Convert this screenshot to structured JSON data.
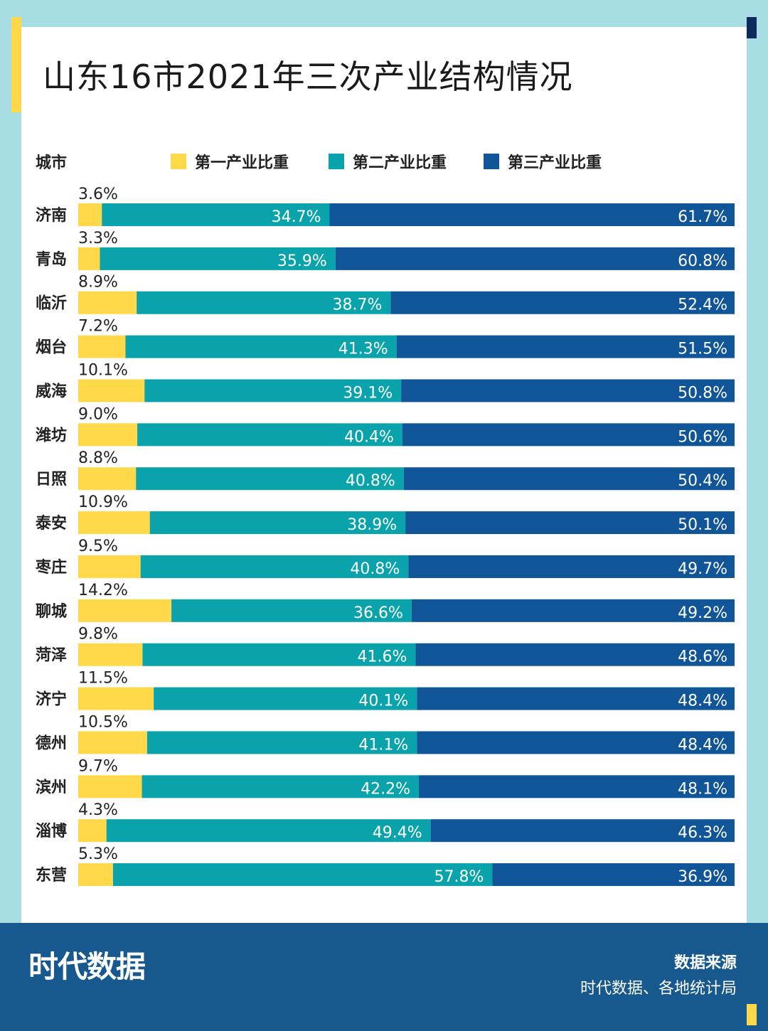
{
  "header": {
    "title": "山东16市2021年三次产业结构情况"
  },
  "footer": {
    "logo_text": "时代数据",
    "source_title": "数据来源",
    "source_text": "时代数据、各地统计局"
  },
  "colors": {
    "primary": "#ffd94a",
    "secondary": "#0aa3ab",
    "tertiary": "#0f5597"
  },
  "chart_data": {
    "type": "bar",
    "orientation": "horizontal",
    "stacked": true,
    "title": "山东16市2021年三次产业结构情况",
    "category_axis_label": "城市",
    "categories": [
      "济南",
      "青岛",
      "临沂",
      "烟台",
      "威海",
      "潍坊",
      "日照",
      "泰安",
      "枣庄",
      "聊城",
      "菏泽",
      "济宁",
      "德州",
      "滨州",
      "淄博",
      "东营"
    ],
    "series": [
      {
        "name": "第一产业比重",
        "values": [
          3.6,
          3.3,
          8.9,
          7.2,
          10.1,
          9.0,
          8.8,
          10.9,
          9.5,
          14.2,
          9.8,
          11.5,
          10.5,
          9.7,
          4.3,
          5.3
        ],
        "labels": [
          "3.6%",
          "3.3%",
          "8.9%",
          "7.2%",
          "10.1%",
          "9.0%",
          "8.8%",
          "10.9%",
          "9.5%",
          "14.2%",
          "9.8%",
          "11.5%",
          "10.5%",
          "9.7%",
          "4.3%",
          "5.3%"
        ]
      },
      {
        "name": "第二产业比重",
        "values": [
          34.7,
          35.9,
          38.7,
          41.3,
          39.1,
          40.4,
          40.8,
          38.9,
          40.8,
          36.6,
          41.6,
          40.1,
          41.1,
          42.2,
          49.4,
          57.8
        ],
        "labels": [
          "34.7%",
          "35.9%",
          "38.7%",
          "41.3%",
          "39.1%",
          "40.4%",
          "40.8%",
          "38.9%",
          "40.8%",
          "36.6%",
          "41.6%",
          "40.1%",
          "41.1%",
          "42.2%",
          "49.4%",
          "57.8%"
        ]
      },
      {
        "name": "第三产业比重",
        "values": [
          61.7,
          60.8,
          52.4,
          51.5,
          50.8,
          50.6,
          50.4,
          50.1,
          49.7,
          49.2,
          48.6,
          48.4,
          48.4,
          48.1,
          46.3,
          36.9
        ],
        "labels": [
          "61.7%",
          "60.8%",
          "52.4%",
          "51.5%",
          "50.8%",
          "50.6%",
          "50.4%",
          "50.1%",
          "49.7%",
          "49.2%",
          "48.6%",
          "48.4%",
          "48.4%",
          "48.1%",
          "46.3%",
          "36.9%"
        ]
      }
    ],
    "unit": "%",
    "legend_position": "top"
  }
}
